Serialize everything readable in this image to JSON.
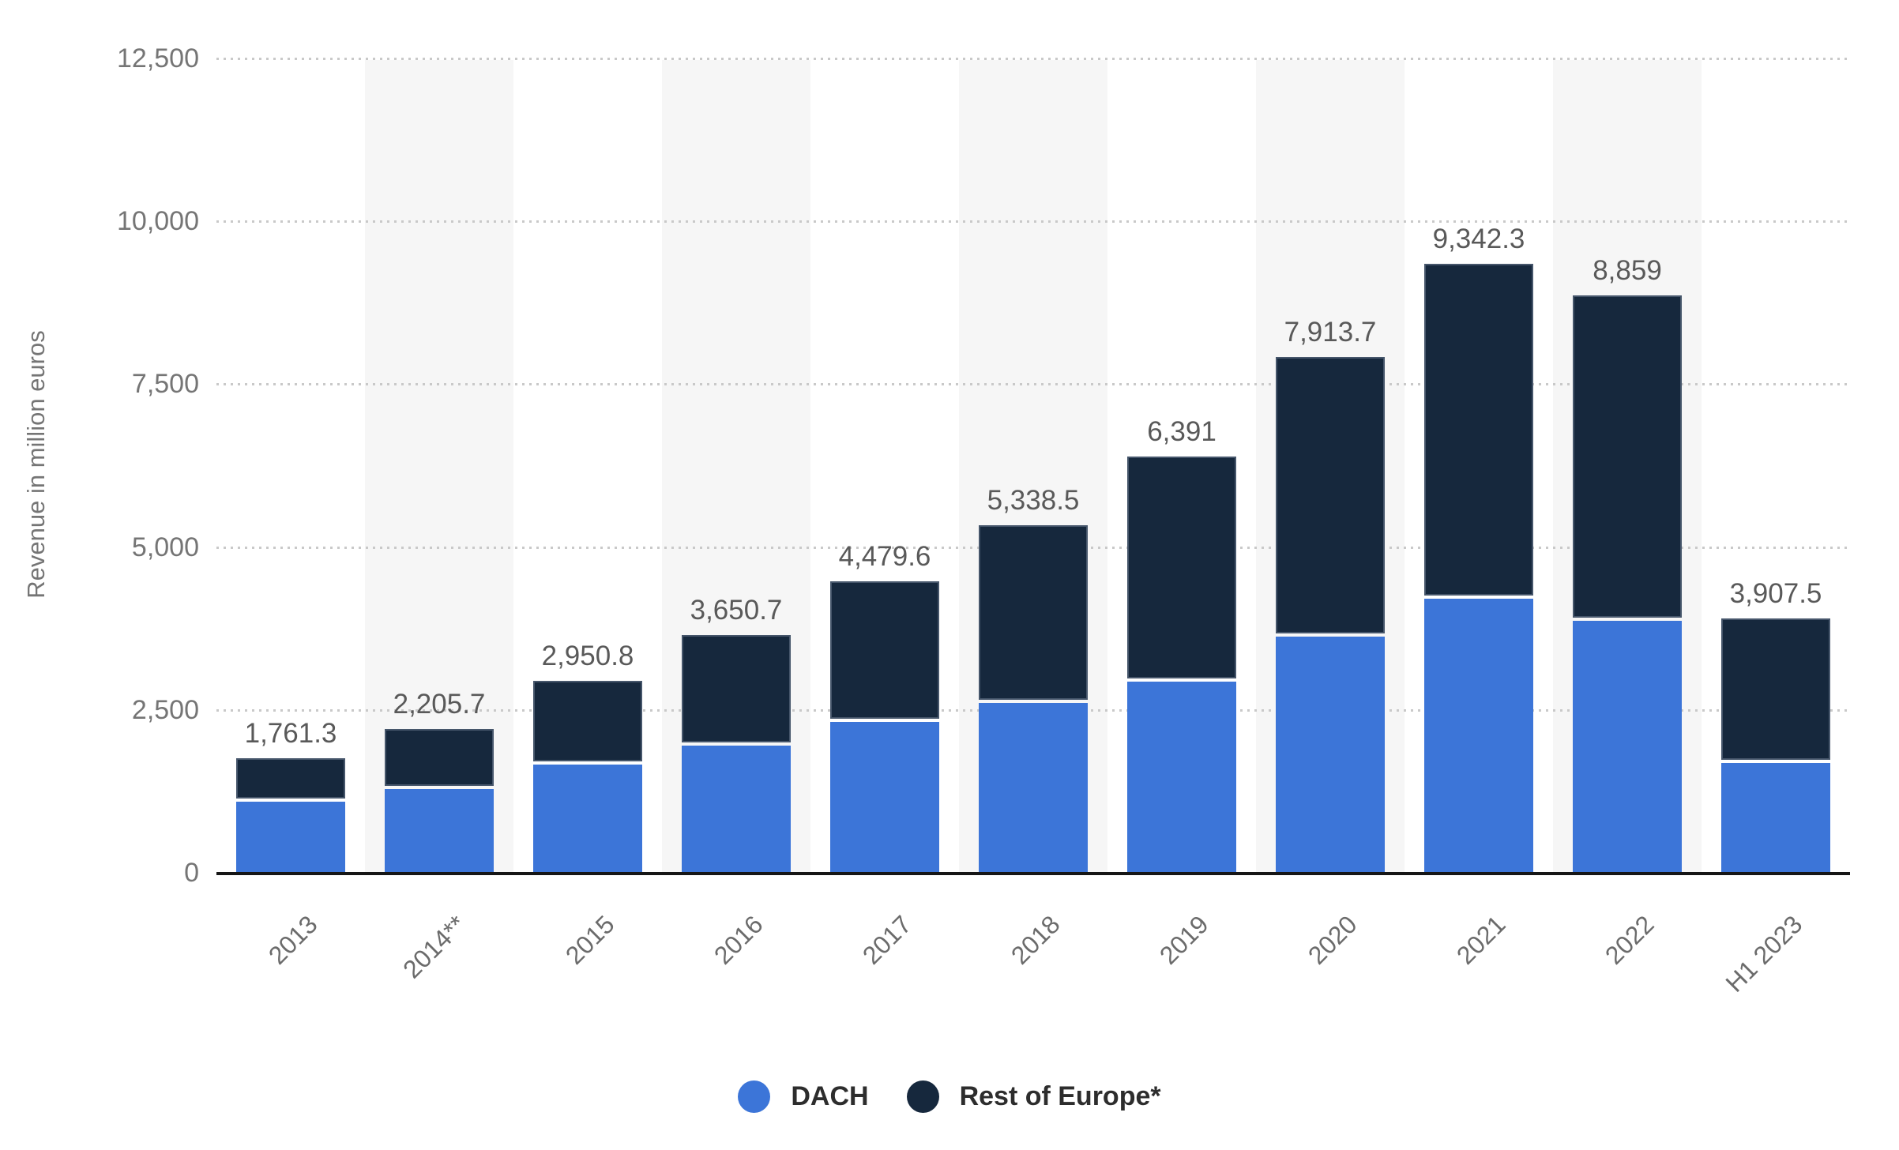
{
  "chart_data": {
    "type": "bar",
    "stacked": true,
    "title": "",
    "ylabel": "Revenue in million euros",
    "xlabel": "",
    "ylim": [
      0,
      12500
    ],
    "yticks": [
      0,
      2500,
      5000,
      7500,
      10000,
      12500
    ],
    "ytick_labels": [
      "0",
      "2,500",
      "5,000",
      "7,500",
      "10,000",
      "12,500"
    ],
    "grid": "horizontal-dotted",
    "legend_position": "bottom",
    "categories": [
      "2013",
      "2014**",
      "2015",
      "2016",
      "2017",
      "2018",
      "2019",
      "2020",
      "2021",
      "2022",
      "H1 2023"
    ],
    "series": [
      {
        "name": "DACH",
        "color": "#3c75d8",
        "values": [
          1086.6,
          1290.4,
          1662.0,
          1949.1,
          2319.1,
          2604.2,
          2936.4,
          3626.9,
          4207.1,
          3869.9,
          1690.0
        ]
      },
      {
        "name": "Rest of Europe*",
        "color": "#16283d",
        "values": [
          674.7,
          915.3,
          1288.8,
          1701.6,
          2160.5,
          2734.3,
          3454.6,
          4286.8,
          5135.2,
          4989.1,
          2217.5
        ]
      }
    ],
    "total_labels": [
      "1,761.3",
      "2,205.7",
      "2,950.8",
      "3,650.7",
      "4,479.6",
      "5,338.5",
      "6,391",
      "7,913.7",
      "9,342.3",
      "8,859",
      "3,907.5"
    ]
  },
  "colors": {
    "dach": "#3c75d8",
    "rest_of_europe": "#16283d",
    "column_band": "#f6f6f6",
    "gridline": "#c9c9c9",
    "axis_line": "#161616",
    "tick_text": "#757575",
    "value_text": "#595959",
    "xlabel_text": "#6b6b6b",
    "legend_text": "#2d2d2d"
  }
}
